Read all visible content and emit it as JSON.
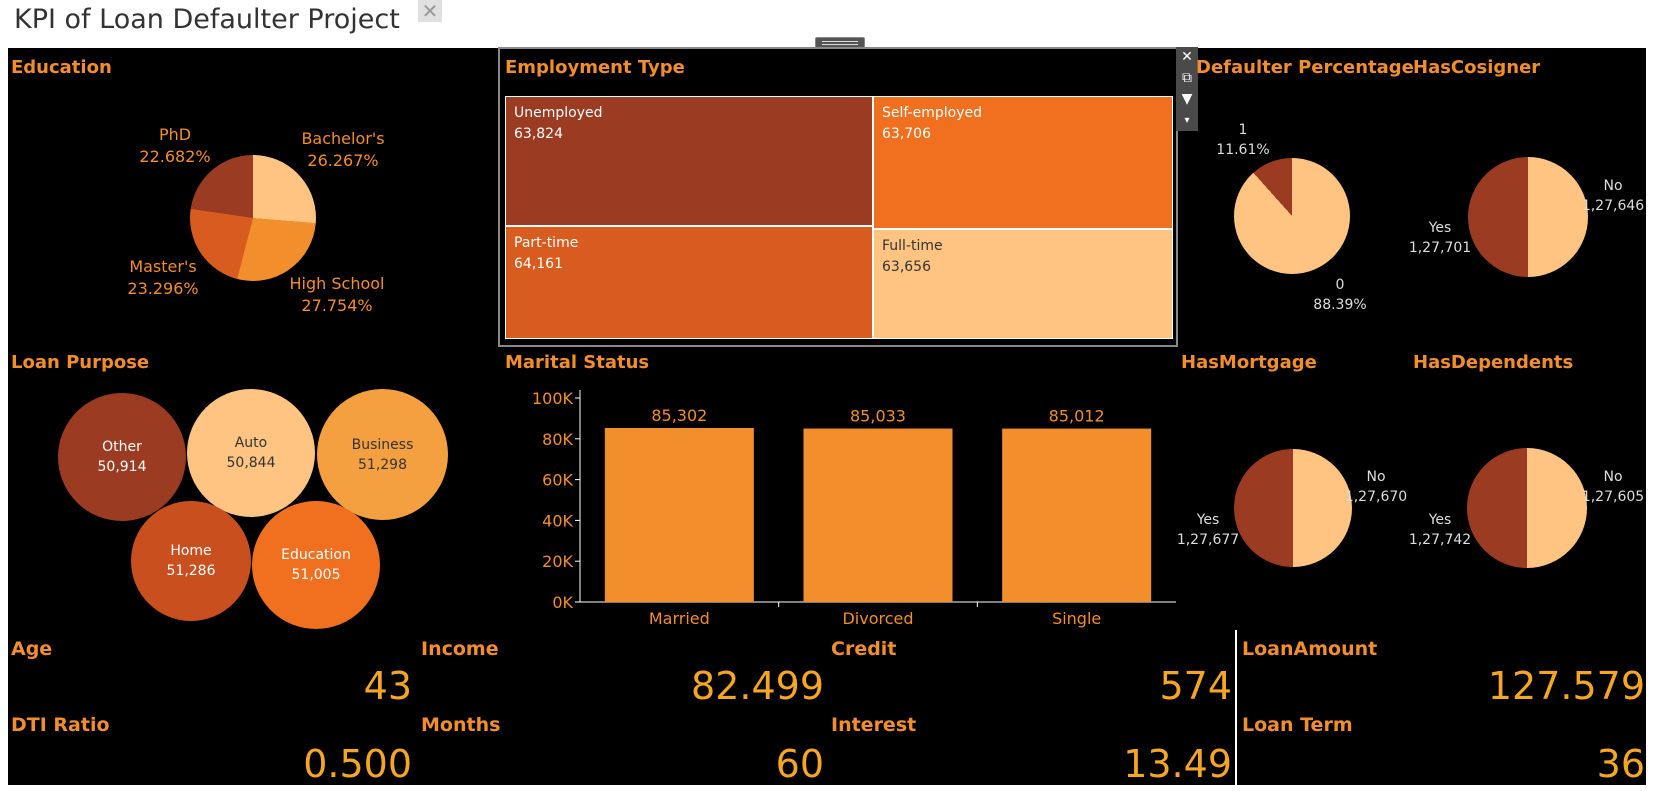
{
  "title": "KPI of Loan Defaulter Project",
  "colors": {
    "dark": "#9b3b22",
    "mid": "#d85c20",
    "orange": "#f28e2b",
    "bright": "#f07020",
    "light": "#ffc482",
    "label": "#f28e2b"
  },
  "education": {
    "title": "Education",
    "slices": [
      {
        "name": "Bachelor's",
        "pct": "26.267%"
      },
      {
        "name": "High School",
        "pct": "27.754%"
      },
      {
        "name": "Master's",
        "pct": "23.296%"
      },
      {
        "name": "PhD",
        "pct": "22.682%"
      }
    ]
  },
  "employment": {
    "title": "Employment Type",
    "items": [
      {
        "name": "Unemployed",
        "value": "63,824"
      },
      {
        "name": "Self-employed",
        "value": "63,706"
      },
      {
        "name": "Part-time",
        "value": "64,161"
      },
      {
        "name": "Full-time",
        "value": "63,656"
      }
    ],
    "tools": [
      "close-icon",
      "popout-icon",
      "filter-icon",
      "dropdown-icon"
    ]
  },
  "defaulter": {
    "title": "Defaulter Percentage",
    "slices": [
      {
        "name": "1",
        "pct": "11.61%"
      },
      {
        "name": "0",
        "pct": "88.39%"
      }
    ]
  },
  "cosigner": {
    "title": "HasCosigner",
    "yes_label": "Yes",
    "yes_value": "1,27,701",
    "no_label": "No",
    "no_value": "1,27,646"
  },
  "mortgage": {
    "title": "HasMortgage",
    "yes_label": "Yes",
    "yes_value": "1,27,677",
    "no_label": "No",
    "no_value": "1,27,670"
  },
  "dependents": {
    "title": "HasDependents",
    "yes_label": "Yes",
    "yes_value": "1,27,742",
    "no_label": "No",
    "no_value": "1,27,605"
  },
  "loan_purpose": {
    "title": "Loan Purpose",
    "bubbles": [
      {
        "name": "Other",
        "value": "50,914"
      },
      {
        "name": "Auto",
        "value": "50,844"
      },
      {
        "name": "Business",
        "value": "51,298"
      },
      {
        "name": "Home",
        "value": "51,286"
      },
      {
        "name": "Education",
        "value": "51,005"
      }
    ]
  },
  "chart_data": {
    "type": "bar",
    "title": "Marital Status",
    "categories": [
      "Married",
      "Divorced",
      "Single"
    ],
    "values": [
      85302,
      85033,
      85012
    ],
    "value_labels": [
      "85,302",
      "85,033",
      "85,012"
    ],
    "yticks": [
      "0K",
      "20K",
      "40K",
      "60K",
      "80K",
      "100K"
    ],
    "ylim": [
      0,
      100000
    ],
    "grid": false
  },
  "kpis": {
    "age": {
      "label": "Age",
      "value": "43"
    },
    "income": {
      "label": "Income",
      "value": "82.499"
    },
    "credit": {
      "label": "Credit",
      "value": "574"
    },
    "loan_amount": {
      "label": "LoanAmount",
      "value": "127.579"
    },
    "dti": {
      "label": "DTI Ratio",
      "value": "0.500"
    },
    "months": {
      "label": "Months",
      "value": "60"
    },
    "interest": {
      "label": "Interest",
      "value": "13.49"
    },
    "loan_term": {
      "label": "Loan Term",
      "value": "36"
    }
  }
}
